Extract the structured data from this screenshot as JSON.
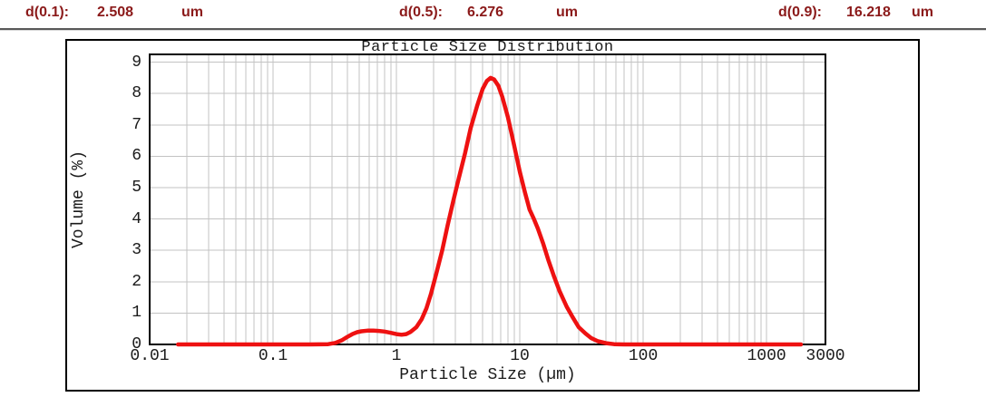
{
  "header": {
    "items": [
      {
        "label": "d(0.1):",
        "value": "2.508",
        "unit": "um"
      },
      {
        "label": "d(0.5):",
        "value": "6.276",
        "unit": "um"
      },
      {
        "label": "d(0.9):",
        "value": "16.218",
        "unit": "um"
      }
    ],
    "text_color": "#8B1A1A"
  },
  "chart_data": {
    "type": "line",
    "title": "Particle Size Distribution",
    "xlabel": "Particle Size (µm)",
    "ylabel": "Volume (%)",
    "x_scale": "log",
    "xlim": [
      0.01,
      3000
    ],
    "ylim": [
      0,
      9.25
    ],
    "x_ticks": [
      {
        "label": "0.01",
        "value": 0.01
      },
      {
        "label": "0.1",
        "value": 0.1
      },
      {
        "label": "1",
        "value": 1
      },
      {
        "label": "10",
        "value": 10
      },
      {
        "label": "100",
        "value": 100
      },
      {
        "label": "1000",
        "value": 1000
      },
      {
        "label": "3000",
        "value": 3000
      }
    ],
    "y_ticks": [
      0,
      1,
      2,
      3,
      4,
      5,
      6,
      7,
      8,
      9
    ],
    "grid": true,
    "legend": "none",
    "colors": {
      "line": "#EE1111",
      "grid": "#c3c3c3",
      "axis": "#000000",
      "title": "#1a1a1a"
    },
    "series": [
      {
        "name": "Volume (%)",
        "color": "#EE1111",
        "points": [
          [
            0.017,
            0
          ],
          [
            0.2,
            0
          ],
          [
            0.28,
            0.01
          ],
          [
            0.32,
            0.05
          ],
          [
            0.36,
            0.13
          ],
          [
            0.4,
            0.24
          ],
          [
            0.44,
            0.33
          ],
          [
            0.48,
            0.39
          ],
          [
            0.52,
            0.42
          ],
          [
            0.58,
            0.44
          ],
          [
            0.65,
            0.44
          ],
          [
            0.72,
            0.43
          ],
          [
            0.8,
            0.41
          ],
          [
            0.9,
            0.37
          ],
          [
            1.0,
            0.33
          ],
          [
            1.1,
            0.31
          ],
          [
            1.2,
            0.33
          ],
          [
            1.3,
            0.4
          ],
          [
            1.45,
            0.55
          ],
          [
            1.6,
            0.8
          ],
          [
            1.75,
            1.15
          ],
          [
            1.9,
            1.6
          ],
          [
            2.1,
            2.25
          ],
          [
            2.35,
            3.0
          ],
          [
            2.6,
            3.8
          ],
          [
            2.9,
            4.6
          ],
          [
            3.2,
            5.3
          ],
          [
            3.6,
            6.1
          ],
          [
            4.0,
            6.9
          ],
          [
            4.5,
            7.6
          ],
          [
            5.0,
            8.15
          ],
          [
            5.4,
            8.4
          ],
          [
            5.8,
            8.5
          ],
          [
            6.2,
            8.45
          ],
          [
            6.7,
            8.25
          ],
          [
            7.2,
            7.9
          ],
          [
            8.0,
            7.25
          ],
          [
            9.0,
            6.35
          ],
          [
            10.0,
            5.5
          ],
          [
            11.0,
            4.85
          ],
          [
            12.0,
            4.3
          ],
          [
            13.0,
            4.0
          ],
          [
            14.0,
            3.7
          ],
          [
            15.5,
            3.2
          ],
          [
            17.0,
            2.7
          ],
          [
            19.0,
            2.15
          ],
          [
            21.0,
            1.7
          ],
          [
            24.0,
            1.2
          ],
          [
            27.0,
            0.85
          ],
          [
            30.0,
            0.55
          ],
          [
            34.0,
            0.35
          ],
          [
            38.0,
            0.2
          ],
          [
            43.0,
            0.1
          ],
          [
            50.0,
            0.04
          ],
          [
            58.0,
            0.01
          ],
          [
            70.0,
            0
          ],
          [
            1900,
            0
          ]
        ]
      }
    ]
  }
}
